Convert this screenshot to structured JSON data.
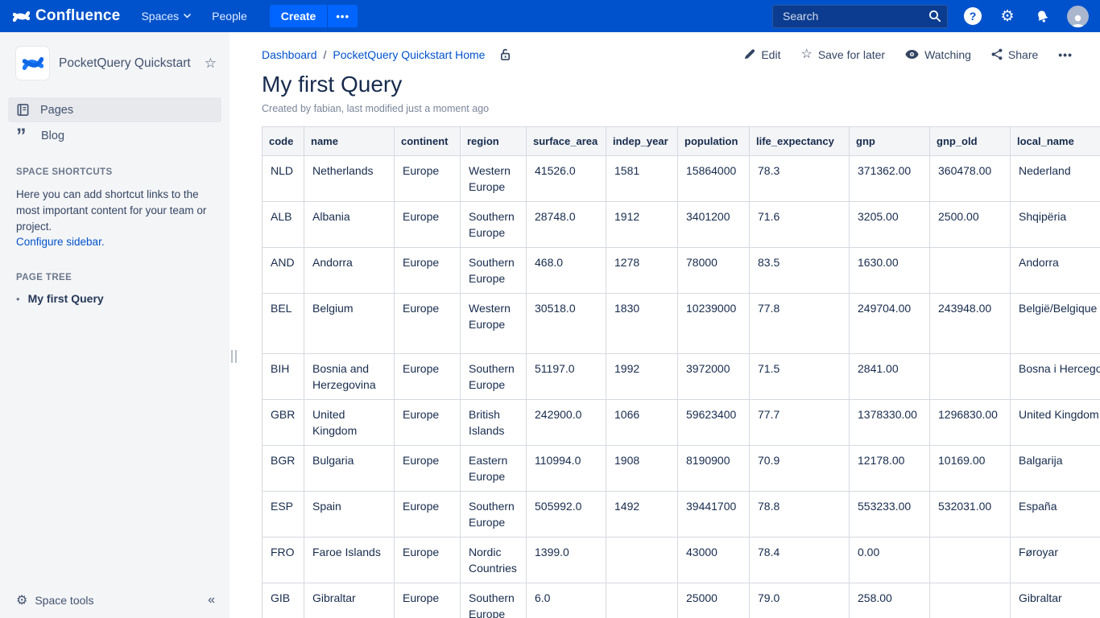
{
  "topbar": {
    "brand": "Confluence",
    "nav": [
      {
        "label": "Spaces"
      },
      {
        "label": "People"
      }
    ],
    "create_label": "Create",
    "create_more_label": "•••",
    "search_placeholder": "Search"
  },
  "sidebar": {
    "space_name": "PocketQuery Quickstart",
    "items": [
      {
        "label": "Pages",
        "selected": true
      },
      {
        "label": "Blog",
        "selected": false
      }
    ],
    "shortcuts_heading": "SPACE SHORTCUTS",
    "shortcuts_text": "Here you can add shortcut links to the most important content for your team or project.",
    "configure_link": "Configure sidebar.",
    "page_tree_heading": "PAGE TREE",
    "page_tree_items": [
      "My first Query"
    ],
    "space_tools_label": "Space tools"
  },
  "breadcrumb": {
    "items": [
      "Dashboard",
      "PocketQuery Quickstart Home"
    ],
    "separator": "/"
  },
  "actions": [
    {
      "label": "Edit"
    },
    {
      "label": "Save for later"
    },
    {
      "label": "Watching"
    },
    {
      "label": "Share"
    },
    {
      "label": "•••"
    }
  ],
  "page": {
    "title": "My first Query",
    "byline": "Created by fabian, last modified just a moment ago"
  },
  "table": {
    "columns": [
      "code",
      "name",
      "continent",
      "region",
      "surface_area",
      "indep_year",
      "population",
      "life_expectancy",
      "gnp",
      "gnp_old",
      "local_name"
    ],
    "rows": [
      [
        "NLD",
        "Netherlands",
        "Europe",
        "Western Europe",
        "41526.0",
        "1581",
        "15864000",
        "78.3",
        "371362.00",
        "360478.00",
        "Nederland"
      ],
      [
        "ALB",
        "Albania",
        "Europe",
        "Southern Europe",
        "28748.0",
        "1912",
        "3401200",
        "71.6",
        "3205.00",
        "2500.00",
        "Shqipëria"
      ],
      [
        "AND",
        "Andorra",
        "Europe",
        "Southern Europe",
        "468.0",
        "1278",
        "78000",
        "83.5",
        "1630.00",
        "",
        "Andorra"
      ],
      [
        "BEL",
        "Belgium",
        "Europe",
        "Western Europe",
        "30518.0",
        "1830",
        "10239000",
        "77.8",
        "249704.00",
        "243948.00",
        "België/Belgique"
      ],
      [
        "BIH",
        "Bosnia and Herzegovina",
        "Europe",
        "Southern Europe",
        "51197.0",
        "1992",
        "3972000",
        "71.5",
        "2841.00",
        "",
        "Bosna i Hercegovina"
      ],
      [
        "GBR",
        "United Kingdom",
        "Europe",
        "British Islands",
        "242900.0",
        "1066",
        "59623400",
        "77.7",
        "1378330.00",
        "1296830.00",
        "United Kingdom"
      ],
      [
        "BGR",
        "Bulgaria",
        "Europe",
        "Eastern Europe",
        "110994.0",
        "1908",
        "8190900",
        "70.9",
        "12178.00",
        "10169.00",
        "Balgarija"
      ],
      [
        "ESP",
        "Spain",
        "Europe",
        "Southern Europe",
        "505992.0",
        "1492",
        "39441700",
        "78.8",
        "553233.00",
        "532031.00",
        "España"
      ],
      [
        "FRO",
        "Faroe Islands",
        "Europe",
        "Nordic Countries",
        "1399.0",
        "",
        "43000",
        "78.4",
        "0.00",
        "",
        "Føroyar"
      ],
      [
        "GIB",
        "Gibraltar",
        "Europe",
        "Southern Europe",
        "6.0",
        "",
        "25000",
        "79.0",
        "258.00",
        "",
        "Gibraltar"
      ]
    ]
  },
  "icons": {
    "star": "☆",
    "blog_quote": "”",
    "space_tools_gear": "⚙",
    "collapse": "«",
    "bullet": "•",
    "help": "?",
    "topbar_gear": "⚙"
  },
  "colors": {
    "topbar_bg": "#0052CC",
    "create_button_bg": "#0065FF",
    "search_field_bg": "#0B3C8F",
    "link": "#0052CC",
    "text_dark": "#172B4D",
    "sidebar_bg": "#F4F5F7",
    "selected_item_bg": "#E7E9ED",
    "table_header_bg": "#F4F5F7",
    "table_border": "#D5D9E0"
  }
}
